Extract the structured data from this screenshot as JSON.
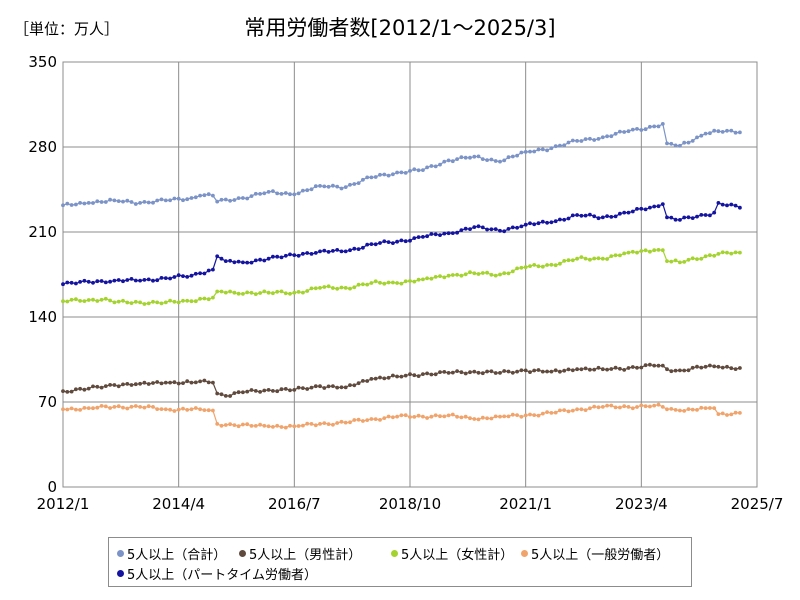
{
  "unit_label": "［単位：万人］",
  "chart_data": {
    "type": "line",
    "title": "常用労働者数[2012/1～2025/3]",
    "ylim": [
      0,
      350
    ],
    "yticks": [
      0,
      70,
      140,
      210,
      280,
      350
    ],
    "xlim": [
      "2012/1",
      "2025/7"
    ],
    "xticks": [
      "2012/1",
      "2014/4",
      "2016/7",
      "2018/10",
      "2021/1",
      "2023/4",
      "2025/7"
    ],
    "grid": true,
    "legend_position": "bottom",
    "series": [
      {
        "name": "5人以上（合計）",
        "color": "#7b93c7",
        "anchors": [
          [
            0,
            232
          ],
          [
            6,
            234
          ],
          [
            12,
            236
          ],
          [
            18,
            234
          ],
          [
            24,
            236
          ],
          [
            30,
            238
          ],
          [
            32,
            240
          ],
          [
            35,
            240
          ],
          [
            36,
            235
          ],
          [
            42,
            238
          ],
          [
            48,
            243
          ],
          [
            54,
            241
          ],
          [
            60,
            248
          ],
          [
            66,
            247
          ],
          [
            72,
            255
          ],
          [
            78,
            259
          ],
          [
            84,
            261
          ],
          [
            90,
            269
          ],
          [
            96,
            272
          ],
          [
            102,
            268
          ],
          [
            108,
            276
          ],
          [
            114,
            279
          ],
          [
            120,
            285
          ],
          [
            126,
            288
          ],
          [
            132,
            293
          ],
          [
            138,
            297
          ],
          [
            140,
            299
          ],
          [
            141,
            283
          ],
          [
            144,
            281
          ],
          [
            150,
            291
          ],
          [
            153,
            293
          ],
          [
            158,
            292
          ]
        ]
      },
      {
        "name": "5人以上（男性計）",
        "color": "#5f4a3d",
        "anchors": [
          [
            0,
            79
          ],
          [
            6,
            81
          ],
          [
            12,
            84
          ],
          [
            18,
            85
          ],
          [
            24,
            86
          ],
          [
            30,
            86
          ],
          [
            32,
            87
          ],
          [
            35,
            86
          ],
          [
            36,
            77
          ],
          [
            38,
            75
          ],
          [
            42,
            78
          ],
          [
            48,
            80
          ],
          [
            54,
            80
          ],
          [
            60,
            83
          ],
          [
            66,
            82
          ],
          [
            72,
            89
          ],
          [
            78,
            91
          ],
          [
            84,
            93
          ],
          [
            90,
            94
          ],
          [
            96,
            95
          ],
          [
            102,
            94
          ],
          [
            108,
            96
          ],
          [
            114,
            95
          ],
          [
            120,
            97
          ],
          [
            126,
            97
          ],
          [
            132,
            98
          ],
          [
            138,
            100
          ],
          [
            140,
            100
          ],
          [
            141,
            97
          ],
          [
            144,
            96
          ],
          [
            150,
            99
          ],
          [
            153,
            99
          ],
          [
            158,
            98
          ]
        ]
      },
      {
        "name": "5人以上（女性計）",
        "color": "#a4d32f",
        "anchors": [
          [
            0,
            153
          ],
          [
            6,
            154
          ],
          [
            10,
            155
          ],
          [
            12,
            152
          ],
          [
            18,
            152
          ],
          [
            24,
            152
          ],
          [
            30,
            153
          ],
          [
            32,
            155
          ],
          [
            35,
            156
          ],
          [
            36,
            161
          ],
          [
            40,
            160
          ],
          [
            48,
            160
          ],
          [
            54,
            160
          ],
          [
            60,
            164
          ],
          [
            66,
            164
          ],
          [
            72,
            168
          ],
          [
            78,
            168
          ],
          [
            84,
            171
          ],
          [
            90,
            174
          ],
          [
            96,
            176
          ],
          [
            102,
            175
          ],
          [
            108,
            181
          ],
          [
            114,
            183
          ],
          [
            120,
            188
          ],
          [
            126,
            188
          ],
          [
            132,
            193
          ],
          [
            138,
            195
          ],
          [
            140,
            195
          ],
          [
            141,
            186
          ],
          [
            144,
            185
          ],
          [
            150,
            190
          ],
          [
            153,
            192
          ],
          [
            158,
            193
          ]
        ]
      },
      {
        "name": "5人以上（一般労働者）",
        "color": "#f0a46c",
        "anchors": [
          [
            0,
            64
          ],
          [
            6,
            65
          ],
          [
            12,
            66
          ],
          [
            18,
            66
          ],
          [
            24,
            64
          ],
          [
            30,
            64
          ],
          [
            32,
            64
          ],
          [
            35,
            63
          ],
          [
            36,
            52
          ],
          [
            40,
            51
          ],
          [
            48,
            50
          ],
          [
            54,
            50
          ],
          [
            60,
            52
          ],
          [
            66,
            53
          ],
          [
            72,
            56
          ],
          [
            78,
            58
          ],
          [
            84,
            58
          ],
          [
            90,
            59
          ],
          [
            96,
            56
          ],
          [
            102,
            58
          ],
          [
            108,
            59
          ],
          [
            114,
            61
          ],
          [
            120,
            64
          ],
          [
            126,
            66
          ],
          [
            132,
            66
          ],
          [
            138,
            67
          ],
          [
            140,
            66
          ],
          [
            141,
            64
          ],
          [
            144,
            63
          ],
          [
            150,
            65
          ],
          [
            152,
            65
          ],
          [
            153,
            60
          ],
          [
            158,
            61
          ]
        ]
      },
      {
        "name": "5人以上（パートタイム労働者）",
        "color": "#1414a0",
        "anchors": [
          [
            0,
            167
          ],
          [
            6,
            169
          ],
          [
            12,
            170
          ],
          [
            18,
            170
          ],
          [
            24,
            172
          ],
          [
            30,
            174
          ],
          [
            32,
            176
          ],
          [
            35,
            179
          ],
          [
            36,
            190
          ],
          [
            38,
            186
          ],
          [
            42,
            185
          ],
          [
            48,
            188
          ],
          [
            54,
            191
          ],
          [
            60,
            194
          ],
          [
            66,
            194
          ],
          [
            72,
            200
          ],
          [
            78,
            202
          ],
          [
            84,
            206
          ],
          [
            90,
            209
          ],
          [
            96,
            214
          ],
          [
            102,
            211
          ],
          [
            108,
            216
          ],
          [
            114,
            218
          ],
          [
            120,
            224
          ],
          [
            126,
            222
          ],
          [
            132,
            226
          ],
          [
            138,
            231
          ],
          [
            140,
            233
          ],
          [
            141,
            222
          ],
          [
            144,
            220
          ],
          [
            150,
            224
          ],
          [
            152,
            226
          ],
          [
            153,
            234
          ],
          [
            158,
            230
          ]
        ]
      }
    ]
  }
}
